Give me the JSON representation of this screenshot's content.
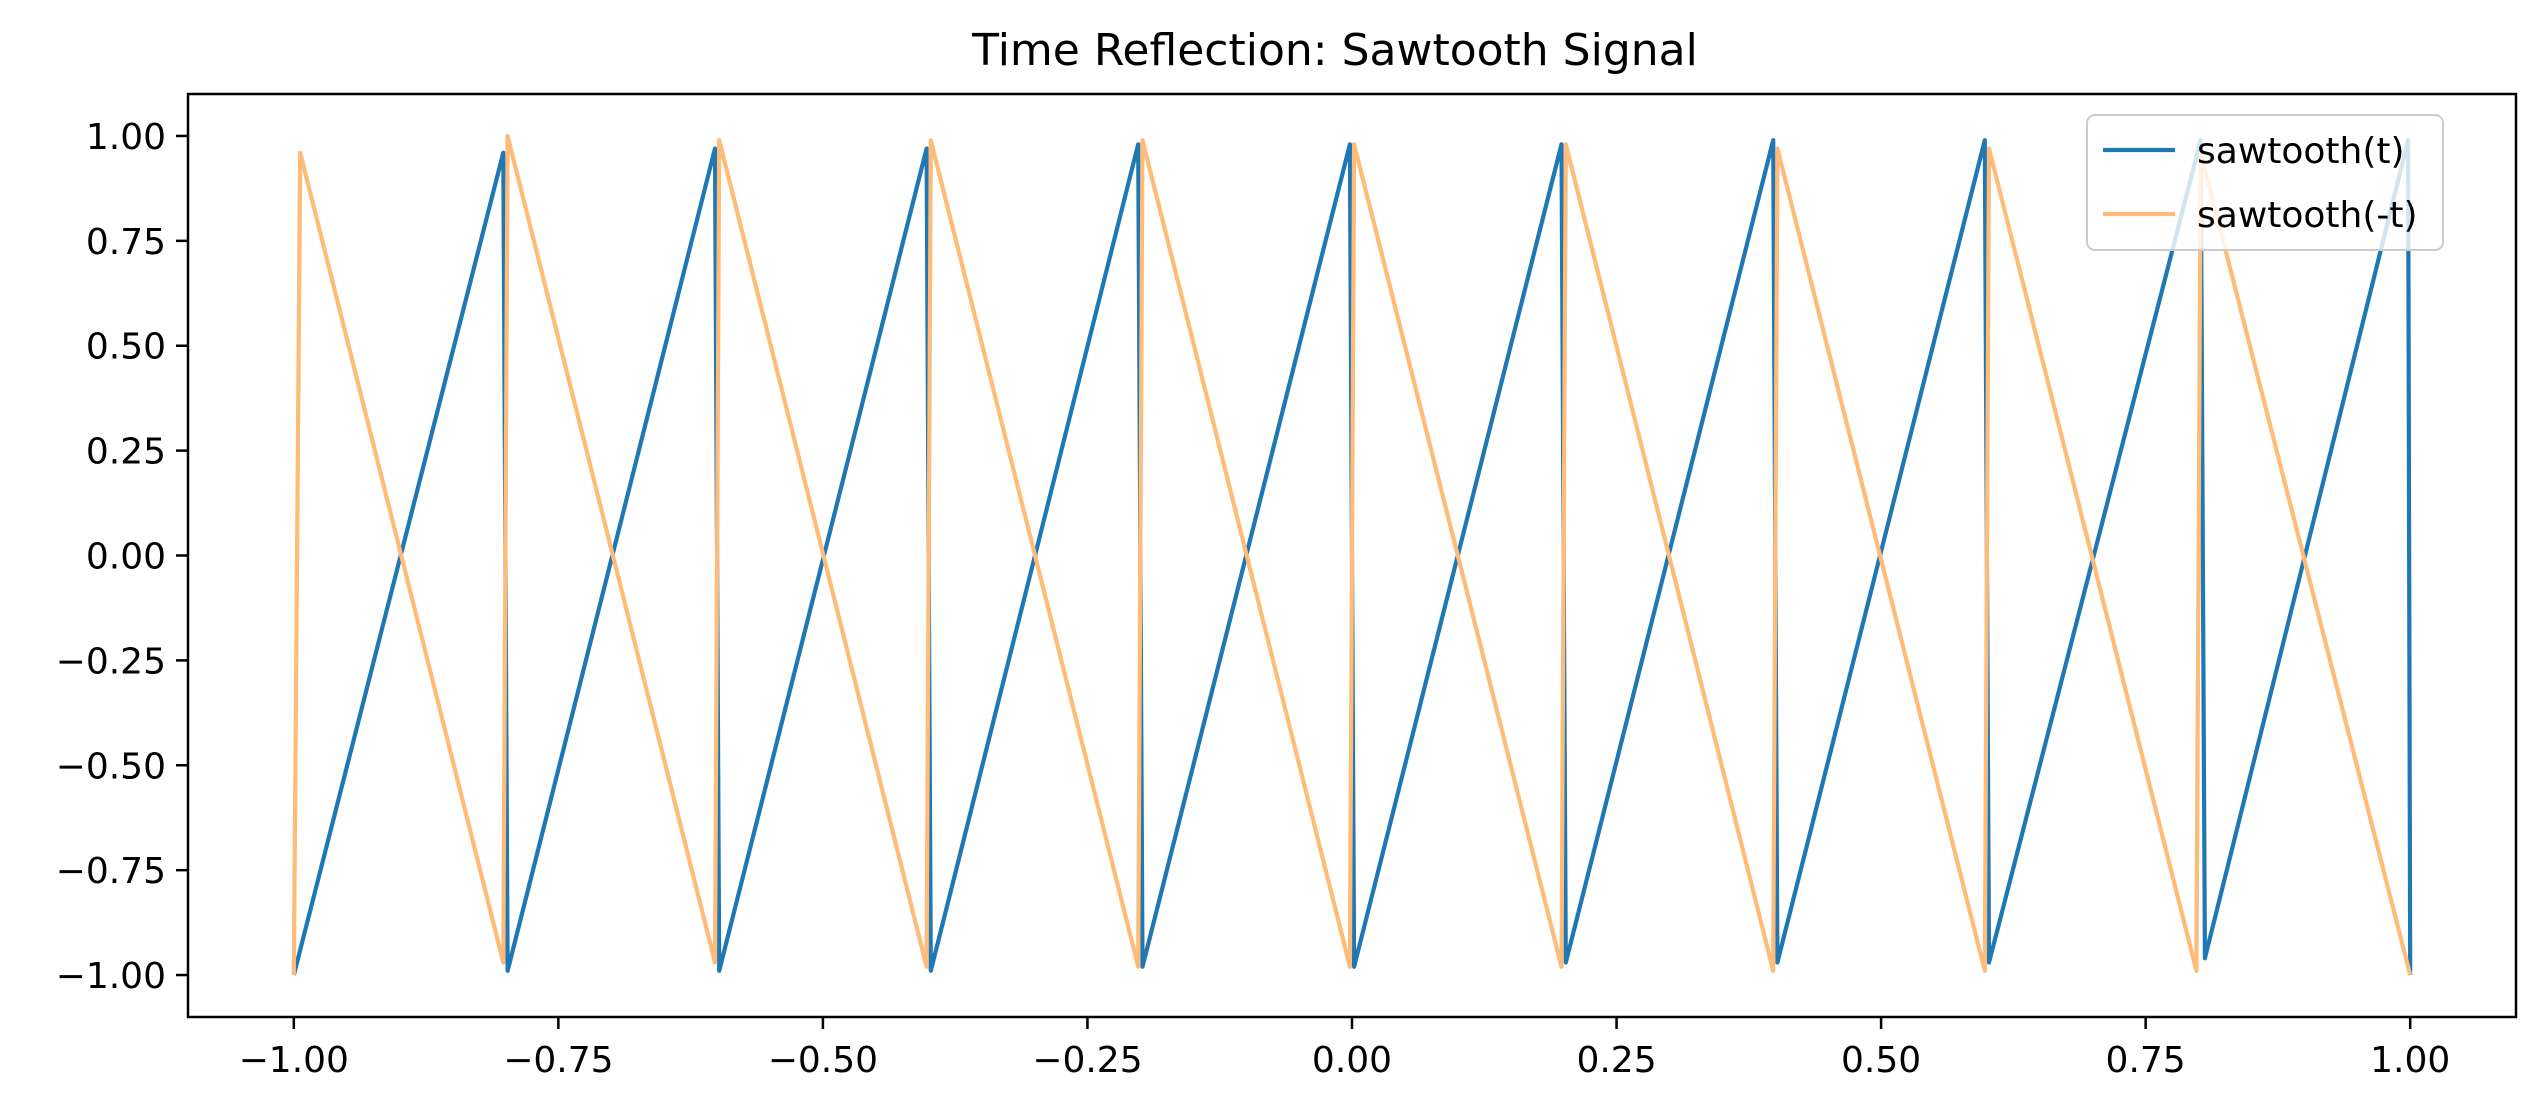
{
  "chart_data": {
    "type": "line",
    "title": "Time Reflection: Sawtooth Signal",
    "xlabel": "",
    "ylabel": "",
    "xlim": [
      -1.1,
      1.1
    ],
    "ylim": [
      -1.1,
      1.1
    ],
    "grid": false,
    "legend_position": "top-right",
    "x_ticks": [
      -1.0,
      -0.75,
      -0.5,
      -0.25,
      0.0,
      0.25,
      0.5,
      0.75,
      1.0
    ],
    "x_tick_labels": [
      "−1.00",
      "−0.75",
      "−0.50",
      "−0.25",
      "0.00",
      "0.25",
      "0.50",
      "0.75",
      "1.00"
    ],
    "y_ticks": [
      -1.0,
      -0.75,
      -0.5,
      -0.25,
      0.0,
      0.25,
      0.5,
      0.75,
      1.0
    ],
    "y_tick_labels": [
      "−1.00",
      "−0.75",
      "−0.50",
      "−0.25",
      "0.00",
      "0.25",
      "0.50",
      "0.75",
      "1.00"
    ],
    "series": [
      {
        "name": "sawtooth(t)",
        "color": "#1f77b4",
        "opacity": 1.0,
        "x": [
          -1.0,
          -0.802,
          -0.798,
          -0.602,
          -0.598,
          -0.402,
          -0.398,
          -0.202,
          -0.198,
          -0.002,
          0.002,
          0.198,
          0.202,
          0.398,
          0.402,
          0.598,
          0.602,
          0.802,
          0.806,
          0.998,
          1.0
        ],
        "y": [
          -1.0,
          0.96,
          -0.99,
          0.97,
          -0.99,
          0.97,
          -0.99,
          0.98,
          -0.98,
          0.98,
          -0.98,
          0.98,
          -0.97,
          0.99,
          -0.97,
          0.99,
          -0.97,
          0.99,
          -0.96,
          0.99,
          -1.0
        ]
      },
      {
        "name": "sawtooth(-t)",
        "color": "#ffbb78",
        "opacity": 1.0,
        "x": [
          -1.0,
          -0.994,
          -0.802,
          -0.798,
          -0.602,
          -0.598,
          -0.402,
          -0.398,
          -0.202,
          -0.198,
          -0.002,
          0.002,
          0.198,
          0.202,
          0.398,
          0.402,
          0.598,
          0.602,
          0.798,
          0.802,
          1.0
        ],
        "y": [
          -1.0,
          0.96,
          -0.97,
          1.0,
          -0.97,
          0.99,
          -0.98,
          0.99,
          -0.98,
          0.99,
          -0.98,
          0.98,
          -0.98,
          0.98,
          -0.99,
          0.97,
          -0.99,
          0.97,
          -0.99,
          0.96,
          -1.0
        ]
      }
    ]
  }
}
